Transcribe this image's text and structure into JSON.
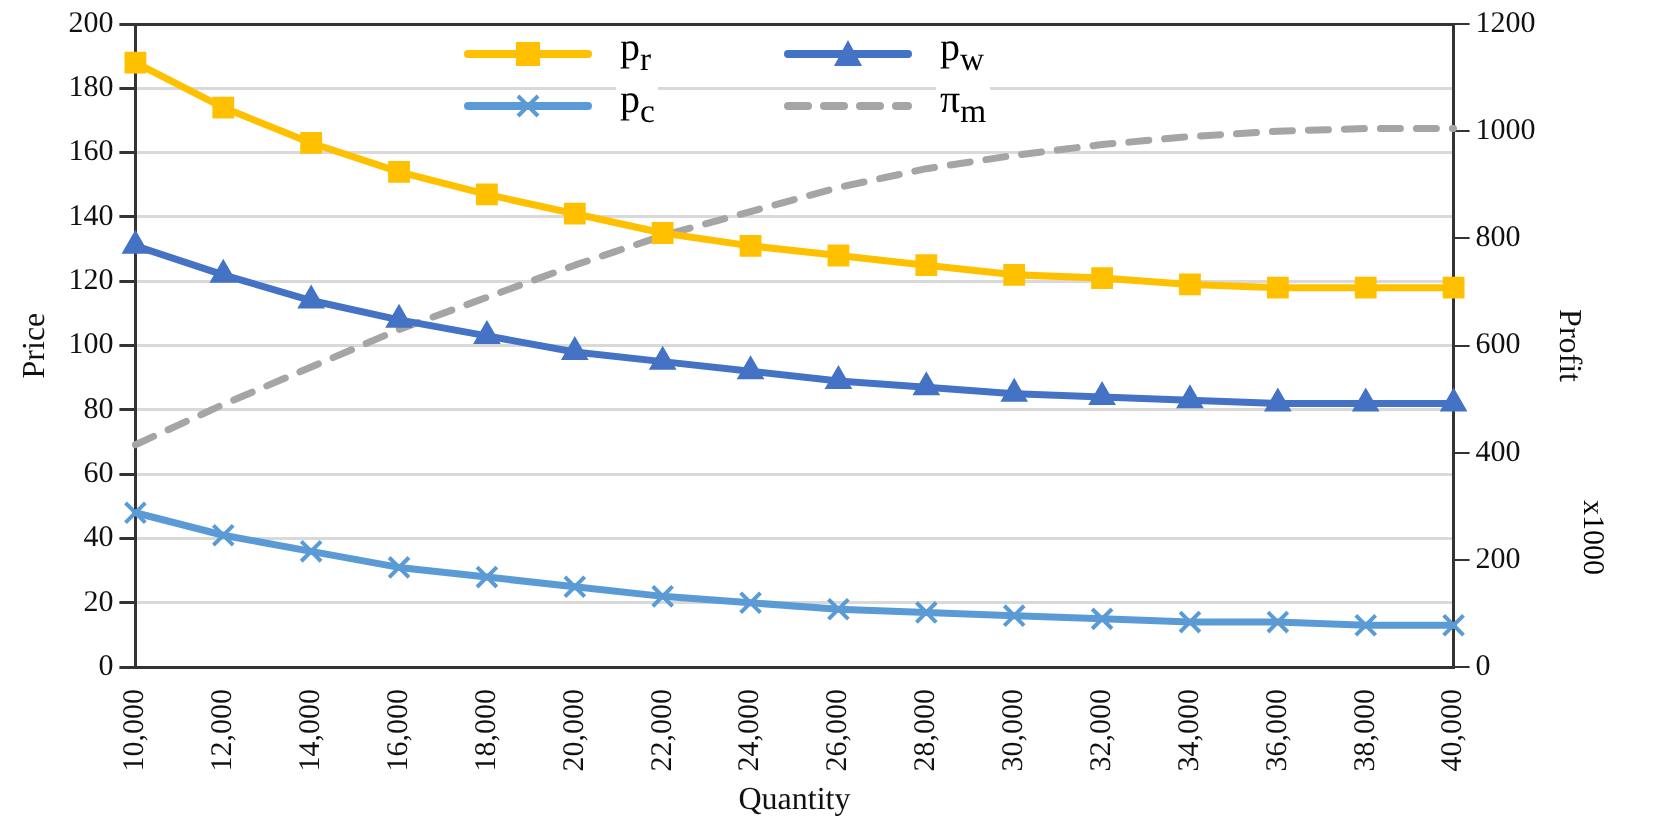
{
  "chart_data": {
    "type": "line",
    "xlabel": "Quantity",
    "ylabel": "Price",
    "y2label": "Profit",
    "annotations": [
      "x1000"
    ],
    "categories": [
      "10,000",
      "12,000",
      "14,000",
      "16,000",
      "18,000",
      "20,000",
      "22,000",
      "24,000",
      "26,000",
      "28,000",
      "30,000",
      "32,000",
      "34,000",
      "36,000",
      "38,000",
      "40,000"
    ],
    "ylim": [
      0,
      200
    ],
    "yticks": [
      0,
      20,
      40,
      60,
      80,
      100,
      120,
      140,
      160,
      180,
      200
    ],
    "y2lim": [
      0,
      1200
    ],
    "y2ticks": [
      0,
      200,
      400,
      600,
      800,
      1000,
      1200
    ],
    "grid": "y",
    "legend": "top",
    "series": [
      {
        "name": "p$_{r}$",
        "color": "#ffc000",
        "marker": "square",
        "values": [
          188,
          174,
          163,
          154,
          147,
          141,
          135,
          131,
          128,
          125,
          122,
          121,
          119,
          118,
          118,
          118
        ]
      },
      {
        "name": "p$_{w}$",
        "color": "#4472c4",
        "marker": "triangle",
        "values": [
          131,
          122,
          114,
          108,
          103,
          98,
          95,
          92,
          89,
          87,
          85,
          84,
          83,
          82,
          82,
          82
        ]
      },
      {
        "name": "p$_{c}$",
        "color": "#5b9bd5",
        "marker": "cross",
        "values": [
          48,
          41,
          36,
          31,
          28,
          25,
          22,
          20,
          18,
          17,
          16,
          15,
          14,
          14,
          13,
          13
        ]
      },
      {
        "name": "π$_{m}$",
        "color": "#a5a5a5",
        "marker": "none",
        "line_style": "dashed",
        "axis": "y2",
        "values": [
          415,
          490,
          560,
          630,
          690,
          750,
          805,
          850,
          895,
          930,
          955,
          975,
          990,
          1000,
          1005,
          1005
        ]
      }
    ]
  }
}
